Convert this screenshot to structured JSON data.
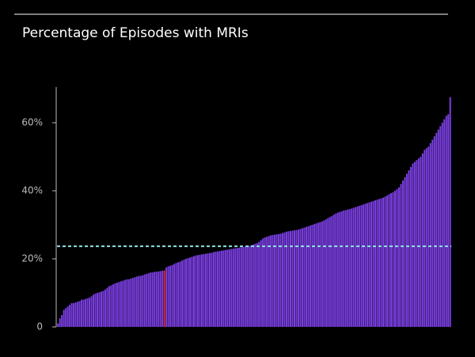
{
  "chart_data": {
    "type": "bar",
    "title": "Percentage of Episodes with MRIs",
    "values": [
      1,
      2.5,
      3.5,
      5,
      5.5,
      6,
      6.5,
      7,
      7,
      7.2,
      7.4,
      7.6,
      8,
      8,
      8.2,
      8.4,
      8.6,
      9,
      9.5,
      9.8,
      10,
      10.2,
      10.4,
      10.6,
      11,
      11.5,
      12,
      12.2,
      12.5,
      12.8,
      13,
      13.2,
      13.4,
      13.6,
      13.8,
      14,
      14,
      14.2,
      14.4,
      14.6,
      14.8,
      15,
      15,
      15.2,
      15.4,
      15.6,
      15.8,
      16,
      16,
      16.2,
      16.2,
      16.3,
      16.4,
      16.5,
      16.6,
      17.5,
      17.8,
      18,
      18.2,
      18.5,
      18.8,
      19,
      19.2,
      19.5,
      19.8,
      20,
      20.2,
      20.4,
      20.6,
      20.8,
      21,
      21.1,
      21.2,
      21.3,
      21.4,
      21.5,
      21.6,
      21.7,
      21.8,
      22,
      22.1,
      22.2,
      22.3,
      22.4,
      22.5,
      22.6,
      22.7,
      22.8,
      22.9,
      23,
      23.1,
      23.2,
      23.3,
      23.4,
      23.5,
      23.6,
      23.7,
      23.8,
      24,
      24.2,
      24.4,
      24.6,
      25,
      25.5,
      26,
      26.3,
      26.5,
      26.7,
      26.9,
      27,
      27.1,
      27.2,
      27.3,
      27.4,
      27.6,
      27.8,
      28,
      28.1,
      28.2,
      28.3,
      28.4,
      28.5,
      28.6,
      28.8,
      29,
      29.2,
      29.4,
      29.6,
      29.8,
      30,
      30.2,
      30.4,
      30.6,
      30.8,
      31,
      31.3,
      31.6,
      32,
      32.3,
      32.6,
      33,
      33.3,
      33.6,
      33.8,
      34,
      34.2,
      34.3,
      34.5,
      34.6,
      34.8,
      35,
      35.2,
      35.4,
      35.6,
      35.8,
      36,
      36.2,
      36.4,
      36.6,
      36.8,
      37,
      37.2,
      37.4,
      37.6,
      37.8,
      38,
      38.3,
      38.6,
      39,
      39.3,
      39.6,
      40,
      40.5,
      41,
      42,
      43,
      44,
      45,
      46,
      47,
      48,
      48.5,
      49,
      49.5,
      50,
      51,
      52,
      52.5,
      53,
      54,
      55,
      56,
      57,
      58,
      59,
      60,
      61,
      62,
      62.5,
      67.5
    ],
    "color": "#7b3fe4",
    "highlight": {
      "index": 54,
      "color": "#e3263a"
    },
    "reference_line": {
      "value": 23.7,
      "color": "#8fe3e3"
    },
    "ylim": [
      0,
      70
    ],
    "yticks": [
      0,
      {
        "value": 20,
        "label": "20%"
      },
      {
        "value": 40,
        "label": "40%"
      },
      {
        "value": 60,
        "label": "60%"
      }
    ],
    "grid": false
  }
}
